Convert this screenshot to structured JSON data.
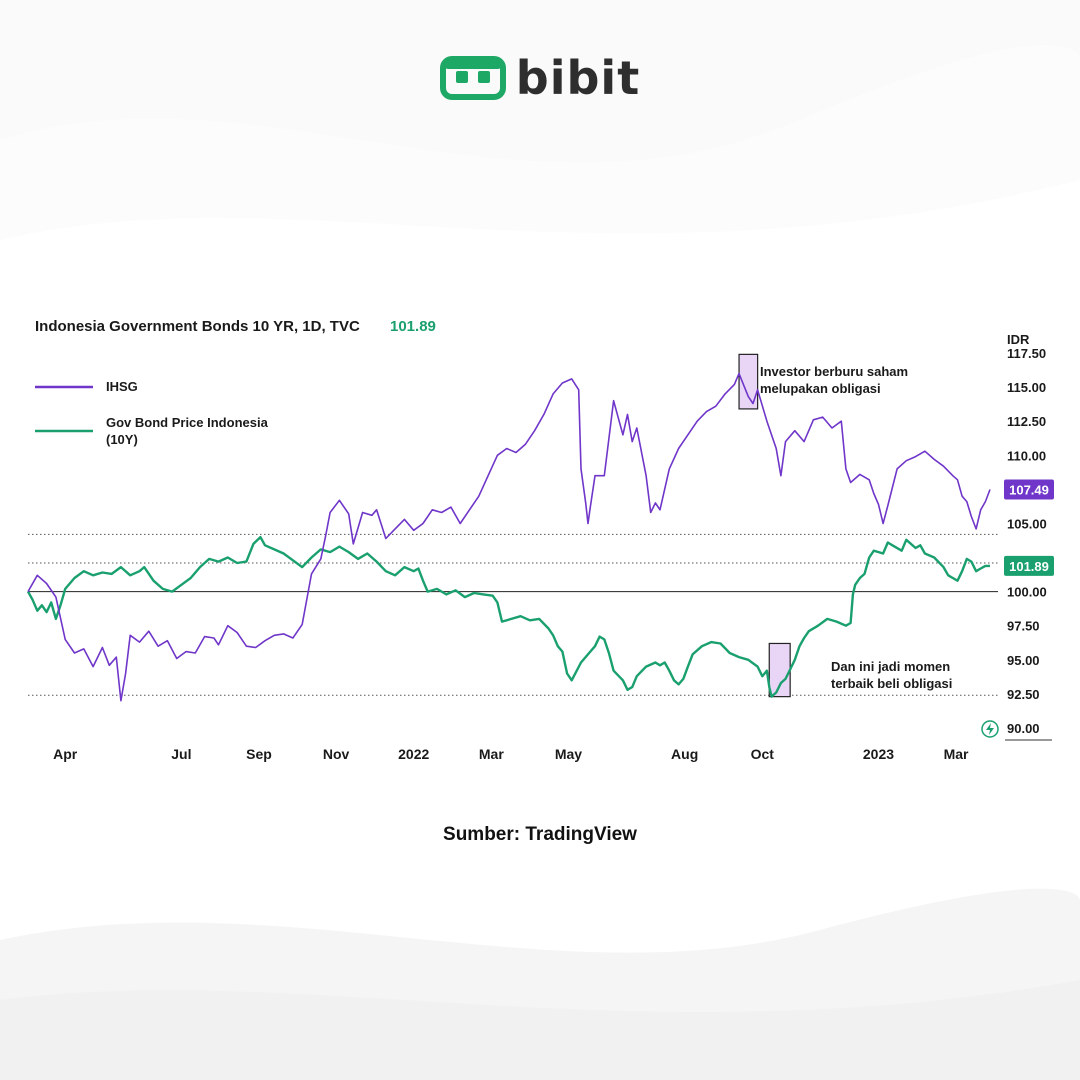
{
  "brand": {
    "name": "bibit",
    "color": "#1ea866"
  },
  "source": "Sumber: TradingView",
  "chart_data": {
    "type": "line",
    "title": "Indonesia Government Bonds 10 YR, 1D, TVC",
    "title_value": "101.89",
    "currency": "IDR",
    "x_tick_labels": [
      "Apr",
      "Jul",
      "Sep",
      "Nov",
      "2022",
      "Mar",
      "May",
      "Aug",
      "Oct",
      "2023",
      "Mar"
    ],
    "x_tick_times": [
      2021.25,
      2021.5,
      2021.667,
      2021.833,
      2022.0,
      2022.167,
      2022.333,
      2022.583,
      2022.75,
      2023.0,
      2023.167
    ],
    "xlim": [
      2021.17,
      2023.24
    ],
    "y_tick_labels": [
      "117.50",
      "115.00",
      "112.50",
      "110.00",
      "105.00",
      "100.00",
      "97.50",
      "95.00",
      "92.50",
      "90.00"
    ],
    "y_tick_values": [
      117.5,
      115.0,
      112.5,
      110.0,
      105.0,
      100.0,
      97.5,
      95.0,
      92.5,
      90.0
    ],
    "ylim": [
      90.0,
      117.5
    ],
    "reference_lines": [
      104.2,
      102.1,
      100.0,
      92.4
    ],
    "legend": [
      {
        "name": "IHSG",
        "color": "#6f36c9"
      },
      {
        "name": "Gov Bond Price Indonesia",
        "name_line2": "(10Y)",
        "color": "#1aa06e"
      }
    ],
    "series": [
      {
        "name": "IHSG",
        "color": "#6f36c9",
        "last_value": "107.49",
        "points": [
          [
            2021.17,
            100.0
          ],
          [
            2021.19,
            101.2
          ],
          [
            2021.21,
            100.6
          ],
          [
            2021.23,
            99.6
          ],
          [
            2021.25,
            96.5
          ],
          [
            2021.27,
            95.5
          ],
          [
            2021.29,
            95.8
          ],
          [
            2021.31,
            94.5
          ],
          [
            2021.33,
            95.9
          ],
          [
            2021.345,
            94.6
          ],
          [
            2021.36,
            95.2
          ],
          [
            2021.37,
            92.0
          ],
          [
            2021.38,
            94.0
          ],
          [
            2021.39,
            96.8
          ],
          [
            2021.41,
            96.3
          ],
          [
            2021.43,
            97.1
          ],
          [
            2021.45,
            96.0
          ],
          [
            2021.47,
            96.4
          ],
          [
            2021.49,
            95.1
          ],
          [
            2021.51,
            95.6
          ],
          [
            2021.53,
            95.5
          ],
          [
            2021.55,
            96.7
          ],
          [
            2021.57,
            96.6
          ],
          [
            2021.58,
            96.1
          ],
          [
            2021.6,
            97.5
          ],
          [
            2021.62,
            97.0
          ],
          [
            2021.64,
            96.0
          ],
          [
            2021.66,
            95.9
          ],
          [
            2021.68,
            96.4
          ],
          [
            2021.7,
            96.8
          ],
          [
            2021.72,
            96.9
          ],
          [
            2021.74,
            96.6
          ],
          [
            2021.76,
            97.6
          ],
          [
            2021.78,
            101.3
          ],
          [
            2021.8,
            102.4
          ],
          [
            2021.81,
            104.0
          ],
          [
            2021.82,
            105.8
          ],
          [
            2021.84,
            106.7
          ],
          [
            2021.86,
            105.7
          ],
          [
            2021.87,
            103.5
          ],
          [
            2021.89,
            105.8
          ],
          [
            2021.91,
            105.6
          ],
          [
            2021.92,
            106.0
          ],
          [
            2021.94,
            103.9
          ],
          [
            2021.96,
            104.6
          ],
          [
            2021.98,
            105.3
          ],
          [
            2022.0,
            104.5
          ],
          [
            2022.02,
            105.0
          ],
          [
            2022.04,
            106.0
          ],
          [
            2022.06,
            105.8
          ],
          [
            2022.08,
            106.2
          ],
          [
            2022.1,
            105.0
          ],
          [
            2022.12,
            106.0
          ],
          [
            2022.14,
            107.0
          ],
          [
            2022.16,
            108.5
          ],
          [
            2022.18,
            110.0
          ],
          [
            2022.2,
            110.5
          ],
          [
            2022.22,
            110.2
          ],
          [
            2022.24,
            110.8
          ],
          [
            2022.26,
            111.8
          ],
          [
            2022.28,
            113.0
          ],
          [
            2022.3,
            114.5
          ],
          [
            2022.32,
            115.3
          ],
          [
            2022.34,
            115.6
          ],
          [
            2022.355,
            114.8
          ],
          [
            2022.36,
            109.0
          ],
          [
            2022.37,
            106.5
          ],
          [
            2022.375,
            105.0
          ],
          [
            2022.38,
            106.2
          ],
          [
            2022.39,
            108.5
          ],
          [
            2022.41,
            108.5
          ],
          [
            2022.43,
            114.0
          ],
          [
            2022.45,
            111.5
          ],
          [
            2022.46,
            113.0
          ],
          [
            2022.47,
            111.0
          ],
          [
            2022.48,
            112.0
          ],
          [
            2022.5,
            108.5
          ],
          [
            2022.51,
            105.8
          ],
          [
            2022.52,
            106.5
          ],
          [
            2022.53,
            106.0
          ],
          [
            2022.55,
            109.0
          ],
          [
            2022.57,
            110.5
          ],
          [
            2022.59,
            111.5
          ],
          [
            2022.61,
            112.5
          ],
          [
            2022.63,
            113.2
          ],
          [
            2022.65,
            113.6
          ],
          [
            2022.67,
            114.5
          ],
          [
            2022.69,
            115.2
          ],
          [
            2022.7,
            116.0
          ],
          [
            2022.72,
            114.3
          ],
          [
            2022.73,
            113.8
          ],
          [
            2022.74,
            114.8
          ],
          [
            2022.76,
            112.5
          ],
          [
            2022.78,
            110.5
          ],
          [
            2022.79,
            108.5
          ],
          [
            2022.8,
            111.0
          ],
          [
            2022.82,
            111.8
          ],
          [
            2022.84,
            111.0
          ],
          [
            2022.86,
            112.6
          ],
          [
            2022.88,
            112.8
          ],
          [
            2022.9,
            112.0
          ],
          [
            2022.92,
            112.5
          ],
          [
            2022.93,
            109.0
          ],
          [
            2022.94,
            108.0
          ],
          [
            2022.96,
            108.6
          ],
          [
            2022.98,
            108.2
          ],
          [
            2022.99,
            107.2
          ],
          [
            2023.0,
            106.4
          ],
          [
            2023.01,
            105.0
          ],
          [
            2023.02,
            106.3
          ],
          [
            2023.04,
            109.0
          ],
          [
            2023.06,
            109.6
          ],
          [
            2023.08,
            109.9
          ],
          [
            2023.1,
            110.3
          ],
          [
            2023.12,
            109.7
          ],
          [
            2023.14,
            109.2
          ],
          [
            2023.16,
            108.5
          ],
          [
            2023.17,
            108.2
          ],
          [
            2023.18,
            107.0
          ],
          [
            2023.19,
            106.6
          ],
          [
            2023.2,
            105.5
          ],
          [
            2023.21,
            104.6
          ],
          [
            2023.22,
            106.0
          ],
          [
            2023.23,
            106.6
          ],
          [
            2023.24,
            107.49
          ]
        ]
      },
      {
        "name": "Gov Bond Price Indonesia (10Y)",
        "color": "#1aa06e",
        "last_value": "101.89",
        "points": [
          [
            2021.17,
            100.0
          ],
          [
            2021.18,
            99.4
          ],
          [
            2021.19,
            98.6
          ],
          [
            2021.2,
            99.0
          ],
          [
            2021.21,
            98.5
          ],
          [
            2021.22,
            99.2
          ],
          [
            2021.23,
            98.0
          ],
          [
            2021.24,
            99.0
          ],
          [
            2021.25,
            100.2
          ],
          [
            2021.27,
            101.0
          ],
          [
            2021.29,
            101.5
          ],
          [
            2021.31,
            101.2
          ],
          [
            2021.33,
            101.4
          ],
          [
            2021.35,
            101.3
          ],
          [
            2021.37,
            101.8
          ],
          [
            2021.39,
            101.2
          ],
          [
            2021.41,
            101.5
          ],
          [
            2021.42,
            101.8
          ],
          [
            2021.44,
            100.8
          ],
          [
            2021.46,
            100.2
          ],
          [
            2021.48,
            100.0
          ],
          [
            2021.5,
            100.5
          ],
          [
            2021.52,
            101.0
          ],
          [
            2021.54,
            101.8
          ],
          [
            2021.56,
            102.4
          ],
          [
            2021.58,
            102.2
          ],
          [
            2021.6,
            102.5
          ],
          [
            2021.62,
            102.1
          ],
          [
            2021.64,
            102.2
          ],
          [
            2021.655,
            103.5
          ],
          [
            2021.67,
            104.0
          ],
          [
            2021.68,
            103.4
          ],
          [
            2021.7,
            103.1
          ],
          [
            2021.72,
            102.8
          ],
          [
            2021.74,
            102.3
          ],
          [
            2021.76,
            101.8
          ],
          [
            2021.78,
            102.5
          ],
          [
            2021.8,
            103.1
          ],
          [
            2021.82,
            102.9
          ],
          [
            2021.84,
            103.3
          ],
          [
            2021.86,
            102.9
          ],
          [
            2021.88,
            102.4
          ],
          [
            2021.9,
            102.8
          ],
          [
            2021.92,
            102.2
          ],
          [
            2021.94,
            101.5
          ],
          [
            2021.96,
            101.2
          ],
          [
            2021.98,
            101.8
          ],
          [
            2022.0,
            101.5
          ],
          [
            2022.01,
            101.7
          ],
          [
            2022.02,
            100.8
          ],
          [
            2022.03,
            100.0
          ],
          [
            2022.05,
            100.2
          ],
          [
            2022.07,
            99.8
          ],
          [
            2022.09,
            100.1
          ],
          [
            2022.11,
            99.6
          ],
          [
            2022.13,
            99.9
          ],
          [
            2022.15,
            99.8
          ],
          [
            2022.17,
            99.7
          ],
          [
            2022.18,
            99.2
          ],
          [
            2022.19,
            97.8
          ],
          [
            2022.21,
            98.0
          ],
          [
            2022.23,
            98.2
          ],
          [
            2022.25,
            97.9
          ],
          [
            2022.27,
            98.0
          ],
          [
            2022.29,
            97.3
          ],
          [
            2022.3,
            96.8
          ],
          [
            2022.31,
            96.0
          ],
          [
            2022.32,
            95.6
          ],
          [
            2022.33,
            94.0
          ],
          [
            2022.34,
            93.5
          ],
          [
            2022.36,
            94.8
          ],
          [
            2022.38,
            95.6
          ],
          [
            2022.39,
            96.0
          ],
          [
            2022.4,
            96.7
          ],
          [
            2022.41,
            96.5
          ],
          [
            2022.42,
            95.5
          ],
          [
            2022.43,
            94.2
          ],
          [
            2022.45,
            93.5
          ],
          [
            2022.46,
            92.8
          ],
          [
            2022.47,
            93.0
          ],
          [
            2022.48,
            93.8
          ],
          [
            2022.5,
            94.5
          ],
          [
            2022.52,
            94.8
          ],
          [
            2022.53,
            94.6
          ],
          [
            2022.54,
            94.8
          ],
          [
            2022.55,
            94.2
          ],
          [
            2022.56,
            93.5
          ],
          [
            2022.57,
            93.2
          ],
          [
            2022.58,
            93.6
          ],
          [
            2022.59,
            94.5
          ],
          [
            2022.6,
            95.4
          ],
          [
            2022.62,
            96.0
          ],
          [
            2022.64,
            96.3
          ],
          [
            2022.66,
            96.2
          ],
          [
            2022.68,
            95.5
          ],
          [
            2022.7,
            95.2
          ],
          [
            2022.72,
            95.0
          ],
          [
            2022.74,
            94.5
          ],
          [
            2022.75,
            93.8
          ],
          [
            2022.76,
            94.2
          ],
          [
            2022.765,
            93.0
          ],
          [
            2022.77,
            92.3
          ],
          [
            2022.78,
            92.6
          ],
          [
            2022.79,
            93.3
          ],
          [
            2022.8,
            93.6
          ],
          [
            2022.81,
            94.3
          ],
          [
            2022.82,
            95.0
          ],
          [
            2022.83,
            96.0
          ],
          [
            2022.84,
            96.6
          ],
          [
            2022.85,
            97.1
          ],
          [
            2022.87,
            97.5
          ],
          [
            2022.89,
            98.0
          ],
          [
            2022.91,
            97.8
          ],
          [
            2022.93,
            97.5
          ],
          [
            2022.94,
            97.7
          ],
          [
            2022.945,
            99.8
          ],
          [
            2022.95,
            100.5
          ],
          [
            2022.96,
            101.0
          ],
          [
            2022.97,
            101.3
          ],
          [
            2022.98,
            102.5
          ],
          [
            2022.99,
            103.0
          ],
          [
            2023.01,
            102.8
          ],
          [
            2023.02,
            103.6
          ],
          [
            2023.03,
            103.4
          ],
          [
            2023.05,
            103.0
          ],
          [
            2023.06,
            103.8
          ],
          [
            2023.08,
            103.2
          ],
          [
            2023.09,
            103.4
          ],
          [
            2023.1,
            102.8
          ],
          [
            2023.12,
            102.5
          ],
          [
            2023.14,
            101.8
          ],
          [
            2023.15,
            101.2
          ],
          [
            2023.16,
            101.0
          ],
          [
            2023.17,
            100.8
          ],
          [
            2023.18,
            101.5
          ],
          [
            2023.19,
            102.4
          ],
          [
            2023.2,
            102.2
          ],
          [
            2023.21,
            101.5
          ],
          [
            2023.22,
            101.7
          ],
          [
            2023.23,
            101.89
          ],
          [
            2023.24,
            101.89
          ]
        ]
      }
    ],
    "annotations": [
      {
        "line1": "Investor berburu saham",
        "line2": "melupakan obligasi",
        "x_range": [
          2022.7,
          2022.74
        ],
        "y_range": [
          113.4,
          117.4
        ],
        "color": "#e9d6f7"
      },
      {
        "line1": "Dan ini jadi momen",
        "line2": "terbaik beli obligasi",
        "x_range": [
          2022.765,
          2022.81
        ],
        "y_range": [
          92.3,
          96.2
        ],
        "color": "#e9d6f7"
      }
    ],
    "grid": false,
    "legend_position": "top-left"
  }
}
